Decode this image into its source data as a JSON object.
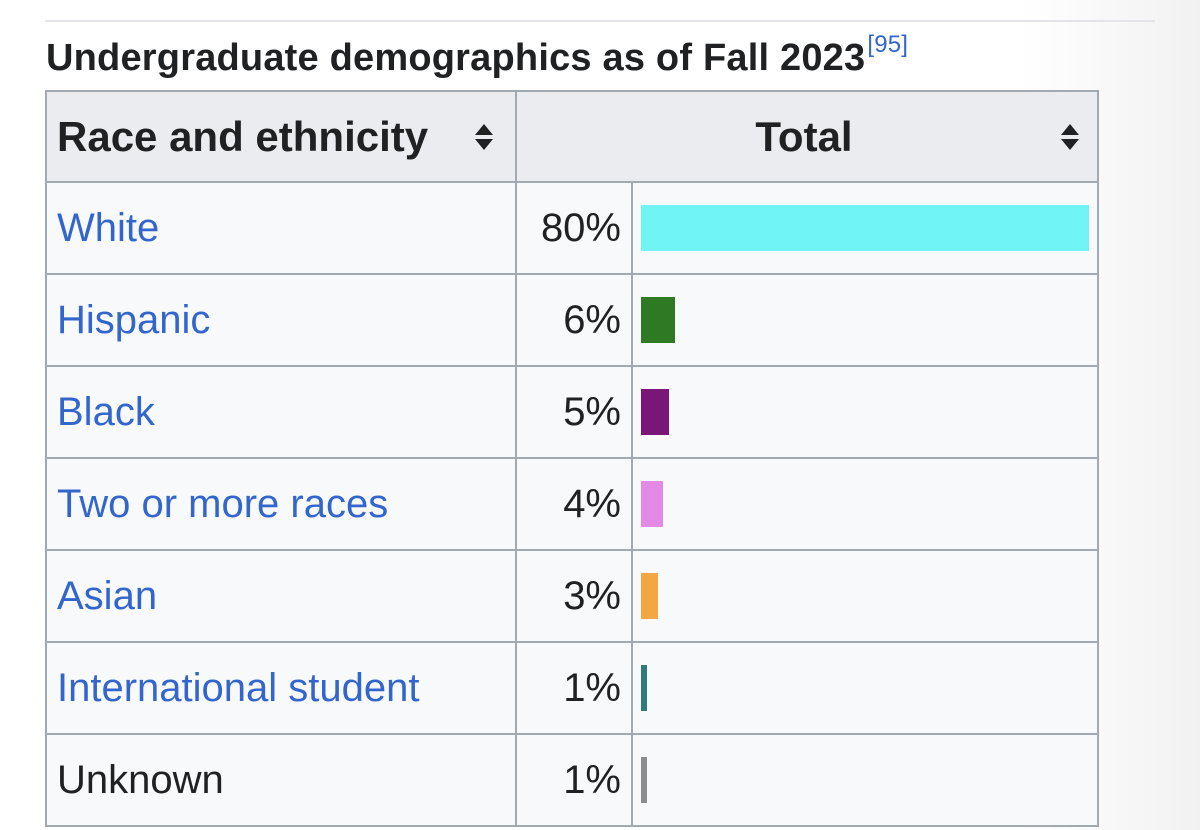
{
  "caption": {
    "title": "Undergraduate demographics as of Fall 2023",
    "reference": "[95]"
  },
  "table": {
    "headers": {
      "race": "Race and ethnicity",
      "total": "Total"
    },
    "rows": [
      {
        "label": "White",
        "pct": "80%",
        "value": 80,
        "color": "#71f5f4",
        "link": true
      },
      {
        "label": "Hispanic",
        "pct": "6%",
        "value": 6,
        "color": "#2d7a22",
        "link": true
      },
      {
        "label": "Black",
        "pct": "5%",
        "value": 5,
        "color": "#7a1678",
        "link": true
      },
      {
        "label": "Two or more races",
        "pct": "4%",
        "value": 4,
        "color": "#e38ae6",
        "link": true
      },
      {
        "label": "Asian",
        "pct": "3%",
        "value": 3,
        "color": "#f2a743",
        "link": true
      },
      {
        "label": "International student",
        "pct": "1%",
        "value": 1,
        "color": "#2f7a7a",
        "link": true
      },
      {
        "label": "Unknown",
        "pct": "1%",
        "value": 1,
        "color": "#8c8c8c",
        "link": false
      }
    ]
  },
  "chart_data": {
    "type": "bar",
    "categories": [
      "White",
      "Hispanic",
      "Black",
      "Two or more races",
      "Asian",
      "International student",
      "Unknown"
    ],
    "values": [
      80,
      6,
      5,
      4,
      3,
      1,
      1
    ],
    "title": "Undergraduate demographics as of Fall 2023",
    "xlabel": "",
    "ylabel": "",
    "colors": [
      "#71f5f4",
      "#2d7a22",
      "#7a1678",
      "#e38ae6",
      "#f2a743",
      "#2f7a7a",
      "#8c8c8c"
    ]
  }
}
